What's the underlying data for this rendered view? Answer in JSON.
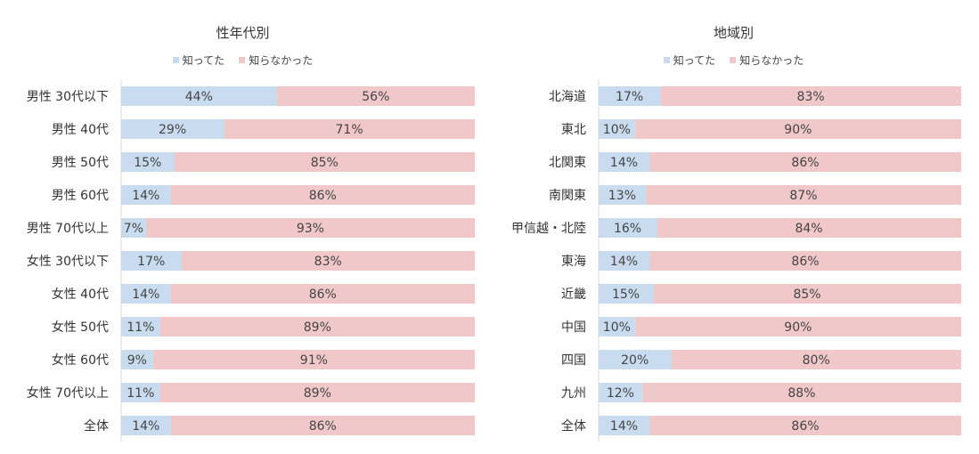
{
  "chart_data": [
    {
      "type": "bar",
      "orientation": "horizontal",
      "stacked": true,
      "normalized": true,
      "title": "性年代別",
      "categories": [
        "男性 30代以下",
        "男性 40代",
        "男性 50代",
        "男性 60代",
        "男性 70代以上",
        "女性 30代以下",
        "女性 40代",
        "女性 50代",
        "女性 60代",
        "女性 70代以上",
        "全体"
      ],
      "series": [
        {
          "name": "知ってた",
          "color": "#c9dcef",
          "values": [
            44,
            29,
            15,
            14,
            7,
            17,
            14,
            11,
            9,
            11,
            14
          ]
        },
        {
          "name": "知らなかった",
          "color": "#f0c8ca",
          "values": [
            56,
            71,
            85,
            86,
            93,
            83,
            86,
            89,
            91,
            89,
            86
          ]
        }
      ],
      "value_suffix": "%",
      "xlim": [
        0,
        100
      ],
      "legend_position": "top-center"
    },
    {
      "type": "bar",
      "orientation": "horizontal",
      "stacked": true,
      "normalized": true,
      "title": "地域別",
      "categories": [
        "北海道",
        "東北",
        "北関東",
        "南関東",
        "甲信越・北陸",
        "東海",
        "近畿",
        "中国",
        "四国",
        "九州",
        "全体"
      ],
      "series": [
        {
          "name": "知ってた",
          "color": "#c9dcef",
          "values": [
            17,
            10,
            14,
            13,
            16,
            14,
            15,
            10,
            20,
            12,
            14
          ]
        },
        {
          "name": "知らなかった",
          "color": "#f0c8ca",
          "values": [
            83,
            90,
            86,
            87,
            84,
            86,
            85,
            90,
            80,
            88,
            86
          ]
        }
      ],
      "value_suffix": "%",
      "xlim": [
        0,
        100
      ],
      "legend_position": "top-center"
    }
  ]
}
